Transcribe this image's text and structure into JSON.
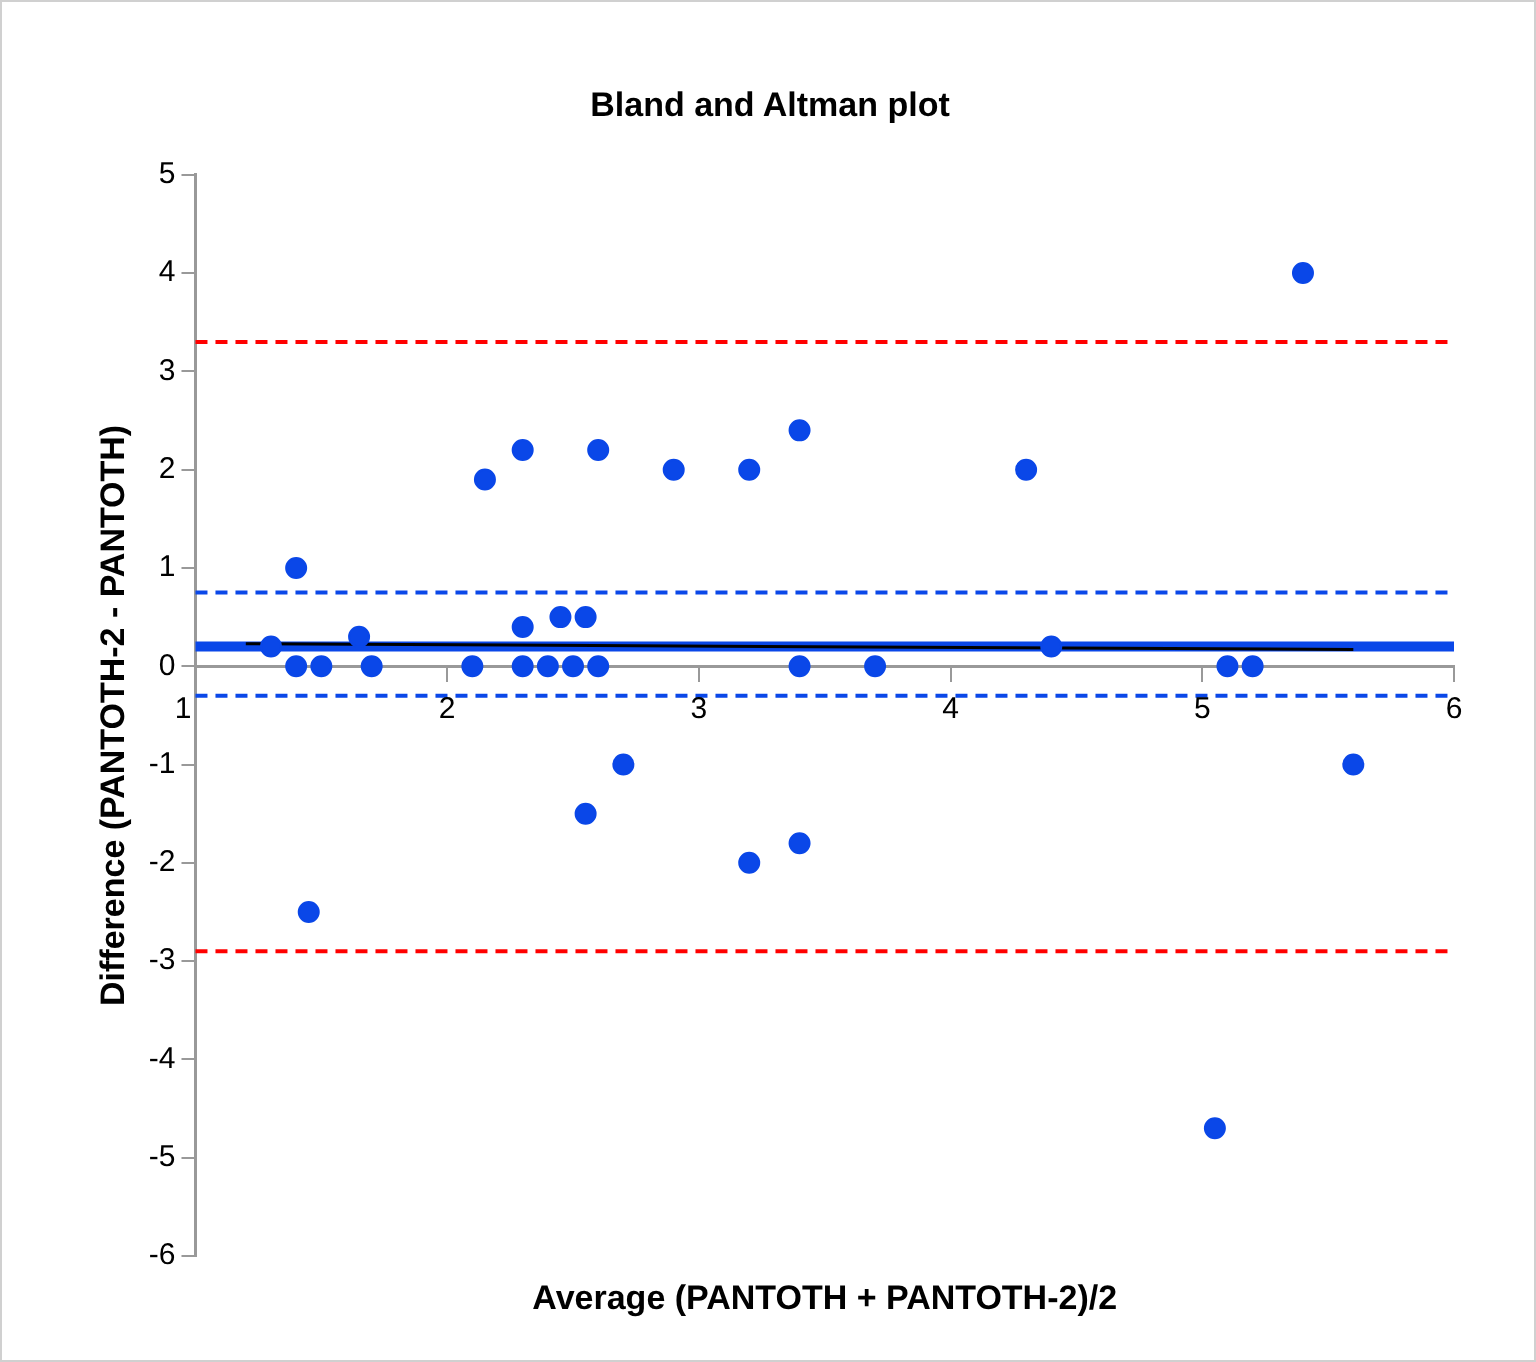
{
  "chart_data": {
    "type": "scatter",
    "title": "Bland and Altman plot",
    "xlabel": "Average (PANTOTH + PANTOTH-2)/2",
    "ylabel": "Difference (PANTOTH-2 - PANTOTH)",
    "xlim": [
      1,
      6
    ],
    "xticks": [
      1,
      2,
      3,
      4,
      5,
      6
    ],
    "ylim": [
      -6,
      5
    ],
    "yticks": [
      -6,
      -5,
      -4,
      -3,
      -2,
      -1,
      0,
      1,
      2,
      3,
      4,
      5
    ],
    "grid": false,
    "legend": false,
    "series": [
      {
        "marker": "circle",
        "color": "#0a47e8",
        "x": [
          1.3,
          1.4,
          1.4,
          1.5,
          1.65,
          1.7,
          1.45,
          2.1,
          2.15,
          2.3,
          2.3,
          2.3,
          2.4,
          2.45,
          2.5,
          2.55,
          2.6,
          2.6,
          2.55,
          2.7,
          2.9,
          3.2,
          3.2,
          3.4,
          3.4,
          3.4,
          3.7,
          4.3,
          4.4,
          5.05,
          5.1,
          5.2,
          5.4,
          5.6
        ],
        "values": [
          0.2,
          1,
          0,
          0,
          0.3,
          0,
          -2.5,
          0,
          1.9,
          2.2,
          0.4,
          0,
          0,
          0.5,
          0,
          0.5,
          0,
          2.2,
          -1.5,
          -1,
          2,
          2,
          -2,
          2.4,
          0,
          -1.8,
          0,
          2,
          0.2,
          -4.7,
          0,
          0,
          4,
          -1
        ]
      },
      {
        "type": "line",
        "color": "#000000",
        "x": [
          1.2,
          5.6
        ],
        "values": [
          0.23,
          0.17
        ]
      }
    ],
    "ref_lines": [
      {
        "axis": "y",
        "value": 3.3,
        "color": "#ff0000",
        "line_style": "dashed"
      },
      {
        "axis": "y",
        "value": -2.9,
        "color": "#ff0000",
        "line_style": "dashed"
      },
      {
        "axis": "y",
        "value": 0.75,
        "color": "#0a47e8",
        "line_style": "dashed"
      },
      {
        "axis": "y",
        "value": -0.3,
        "color": "#0a47e8",
        "line_style": "dashed"
      },
      {
        "axis": "y",
        "value": 0.2,
        "color": "#0a47e8",
        "line_style": "solid"
      }
    ]
  }
}
